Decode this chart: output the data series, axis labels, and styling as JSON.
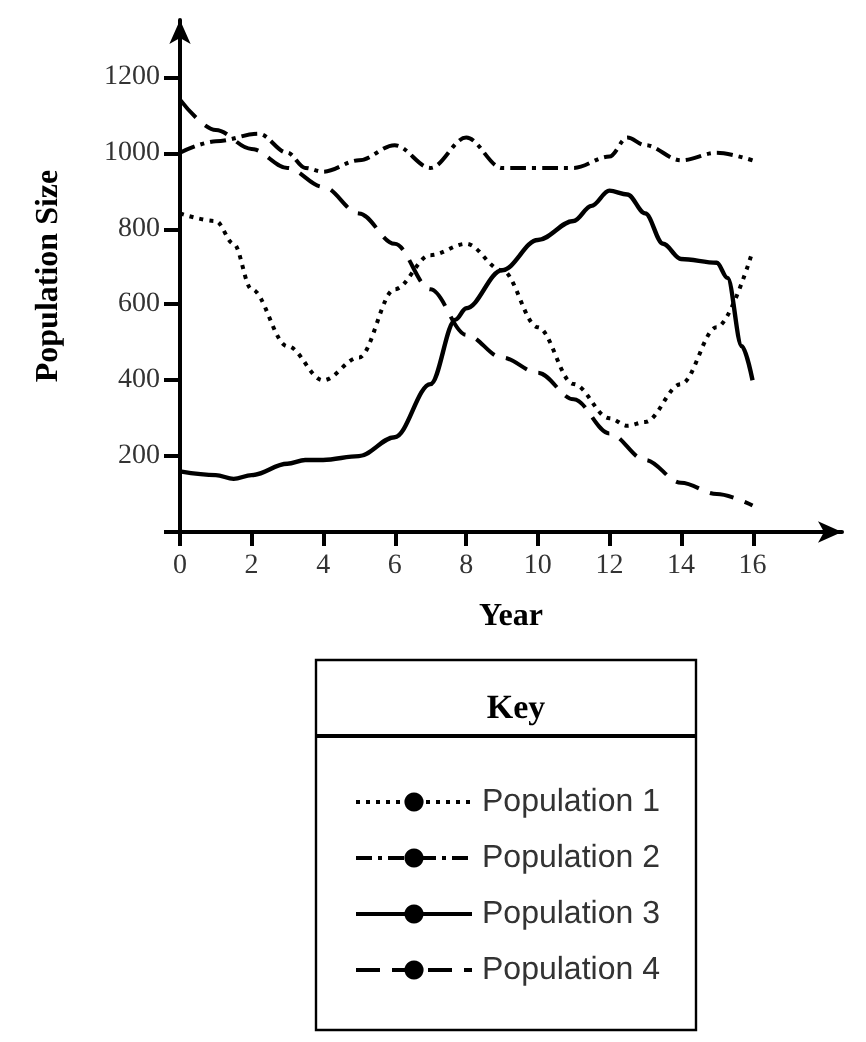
{
  "chart_data": {
    "type": "line",
    "xlabel": "Year",
    "ylabel": "Population Size",
    "legend_title": "Key",
    "legend": "bottom",
    "grid": false,
    "marker": "none",
    "xlim": [
      0,
      18.5
    ],
    "ylim": [
      0,
      1350
    ],
    "xticks": [
      {
        "value": 0,
        "label": "0"
      },
      2,
      4,
      6,
      8,
      10,
      12,
      14,
      16
    ],
    "yticks": [
      {
        "value": 0,
        "label": null
      },
      200,
      400,
      600,
      800,
      1000,
      1200
    ],
    "series": [
      {
        "name": "Population 1",
        "color": "#000000",
        "line_style": "dotted",
        "x": [
          0,
          1,
          1.5,
          2,
          3,
          4,
          5,
          6,
          7,
          8,
          9,
          10,
          11,
          12,
          12.5,
          13,
          14,
          15,
          16
        ],
        "values": [
          840,
          820,
          760,
          640,
          490,
          400,
          460,
          640,
          730,
          760,
          690,
          540,
          390,
          300,
          280,
          290,
          390,
          540,
          740
        ]
      },
      {
        "name": "Population 2",
        "color": "#000000",
        "line_style": "dashdot",
        "x": [
          0,
          1,
          2.2,
          3,
          3.5,
          4,
          5,
          6,
          7,
          8,
          9,
          10,
          11,
          12,
          12.5,
          13,
          14,
          15,
          16
        ],
        "values": [
          1000,
          1030,
          1050,
          1000,
          960,
          950,
          980,
          1020,
          960,
          1040,
          960,
          960,
          960,
          990,
          1040,
          1020,
          980,
          1000,
          980
        ]
      },
      {
        "name": "Population 3",
        "color": "#000000",
        "line_style": "solid",
        "x": [
          0,
          1,
          1.5,
          2,
          3,
          3.5,
          4,
          5,
          6,
          7,
          7.7,
          8,
          9,
          10,
          11,
          11.5,
          12,
          12.5,
          13,
          13.5,
          14,
          15,
          15.3,
          15.7,
          16
        ],
        "values": [
          160,
          150,
          140,
          150,
          180,
          190,
          190,
          200,
          250,
          390,
          560,
          590,
          690,
          770,
          820,
          860,
          900,
          890,
          840,
          760,
          720,
          710,
          670,
          490,
          400
        ]
      },
      {
        "name": "Population 4",
        "color": "#000000",
        "line_style": "dashed",
        "x": [
          0,
          1,
          2,
          3,
          4,
          5,
          6,
          7,
          8,
          9,
          10,
          11,
          12,
          13,
          14,
          15,
          16
        ],
        "values": [
          1140,
          1060,
          1010,
          960,
          910,
          840,
          760,
          640,
          520,
          460,
          420,
          350,
          260,
          190,
          130,
          100,
          70
        ]
      }
    ]
  }
}
